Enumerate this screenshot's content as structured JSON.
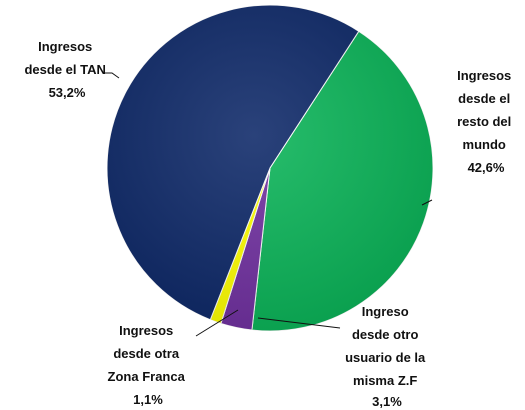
{
  "chart_data": {
    "type": "pie",
    "title": "",
    "slices": [
      {
        "label_lines": [
          "Ingresos",
          "desde el",
          "resto del",
          "mundo"
        ],
        "value_label": "42,6%",
        "value": 42.6,
        "color": "#0ab458"
      },
      {
        "label_lines": [
          "Ingreso",
          "desde otro",
          "usuario de la",
          "misma Z.F"
        ],
        "value_label": "3,1%",
        "value": 3.1,
        "color": "#7030a0"
      },
      {
        "label_lines": [
          "Ingresos",
          "desde otra",
          "Zona Franca"
        ],
        "value_label": "1,1%",
        "value": 1.1,
        "color": "#ffff00"
      },
      {
        "label_lines": [
          "Ingresos",
          "desde el TAN"
        ],
        "value_label": "53,2%",
        "value": 53.2,
        "color": "#0d2868"
      }
    ]
  }
}
